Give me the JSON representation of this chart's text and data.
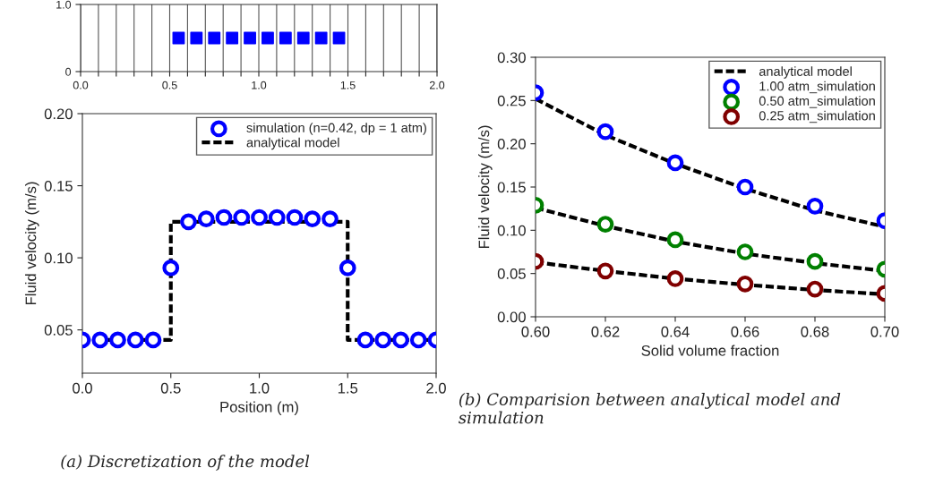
{
  "chart_data": [
    {
      "type": "scatter",
      "x": [
        0.55,
        0.65,
        0.75,
        0.85,
        0.95,
        1.05,
        1.15,
        1.25,
        1.35,
        1.45
      ],
      "values": [
        0.5,
        0.5,
        0.5,
        0.5,
        0.5,
        0.5,
        0.5,
        0.5,
        0.5,
        0.5
      ],
      "color": "#0000ff",
      "marker": "square",
      "xlim": [
        0,
        2
      ],
      "ylim": [
        0,
        1
      ],
      "xticks": [
        {
          "value": 0,
          "label": "0.0"
        },
        {
          "value": 0.1,
          "label": null
        },
        {
          "value": 0.2,
          "label": null
        },
        {
          "value": 0.3,
          "label": null
        },
        {
          "value": 0.4,
          "label": null
        },
        {
          "value": 0.5,
          "label": "0.5"
        },
        {
          "value": 0.6,
          "label": null
        },
        {
          "value": 0.7,
          "label": null
        },
        {
          "value": 0.8,
          "label": null
        },
        {
          "value": 0.9,
          "label": null
        },
        {
          "value": 1,
          "label": "1.0"
        },
        {
          "value": 1.1,
          "label": null
        },
        {
          "value": 1.2,
          "label": null
        },
        {
          "value": 1.3,
          "label": null
        },
        {
          "value": 1.4,
          "label": null
        },
        {
          "value": 1.5,
          "label": "1.5"
        },
        {
          "value": 1.6,
          "label": null
        },
        {
          "value": 1.7,
          "label": null
        },
        {
          "value": 1.8,
          "label": null
        },
        {
          "value": 1.9,
          "label": null
        },
        {
          "value": 2,
          "label": "2.0"
        }
      ],
      "yticks": [
        0,
        {
          "value": 1,
          "label": "1.0"
        }
      ],
      "grid": "x"
    },
    {
      "type": "line",
      "xlabel": "Position (m)",
      "ylabel": "Fluid velocity (m/s)",
      "xlim": [
        0,
        2
      ],
      "ylim": [
        0.02,
        0.2
      ],
      "xticks": [
        {
          "value": 0,
          "label": "0.0"
        },
        {
          "value": 0.5,
          "label": "0.5"
        },
        {
          "value": 1,
          "label": "1.0"
        },
        {
          "value": 1.5,
          "label": "1.5"
        },
        {
          "value": 2,
          "label": "2.0"
        }
      ],
      "yticks": [
        {
          "value": 0.05,
          "label": "0.05"
        },
        {
          "value": 0.1,
          "label": "0.10"
        },
        {
          "value": 0.15,
          "label": "0.15"
        },
        {
          "value": 0.2,
          "label": "0.20"
        }
      ],
      "legend": "top right",
      "annotations": [
        "(a) Discretization of the model"
      ],
      "series": [
        {
          "name": "simulation (n=0.42, dp = 1 atm)",
          "type": "scatter",
          "marker": "circle",
          "color": "#0000ff",
          "x": [
            0,
            0.1,
            0.2,
            0.3,
            0.4,
            0.5,
            0.6,
            0.7,
            0.8,
            0.9,
            1.0,
            1.1,
            1.2,
            1.3,
            1.4,
            1.5,
            1.6,
            1.7,
            1.8,
            1.9,
            2.0
          ],
          "values": [
            0.043,
            0.043,
            0.043,
            0.043,
            0.043,
            0.093,
            0.125,
            0.127,
            0.128,
            0.128,
            0.128,
            0.128,
            0.128,
            0.127,
            0.127,
            0.093,
            0.043,
            0.043,
            0.043,
            0.043,
            0.043
          ]
        },
        {
          "name": "analytical model",
          "type": "line",
          "line_style": "dashed",
          "color": "#000000",
          "x": [
            0,
            0.5,
            0.5,
            1.5,
            1.5,
            2.0
          ],
          "values": [
            0.043,
            0.043,
            0.125,
            0.125,
            0.043,
            0.043
          ]
        }
      ]
    },
    {
      "type": "line",
      "xlabel": "Solid volume fraction",
      "ylabel": "Fluid velocity (m/s)",
      "xlim": [
        0.6,
        0.7
      ],
      "ylim": [
        0,
        0.3
      ],
      "xticks": [
        {
          "value": 0.6,
          "label": "0.60"
        },
        {
          "value": 0.62,
          "label": "0.62"
        },
        {
          "value": 0.64,
          "label": "0.64"
        },
        {
          "value": 0.66,
          "label": "0.66"
        },
        {
          "value": 0.68,
          "label": "0.68"
        },
        {
          "value": 0.7,
          "label": "0.70"
        }
      ],
      "yticks": [
        {
          "value": 0,
          "label": "0.00"
        },
        {
          "value": 0.05,
          "label": "0.05"
        },
        {
          "value": 0.1,
          "label": "0.10"
        },
        {
          "value": 0.15,
          "label": "0.15"
        },
        {
          "value": 0.2,
          "label": "0.20"
        },
        {
          "value": 0.25,
          "label": "0.25"
        },
        {
          "value": 0.3,
          "label": "0.30"
        }
      ],
      "legend": "top right",
      "annotations": [
        "(b) Comparision between analytical model and simulation"
      ],
      "x": [
        0.6,
        0.62,
        0.64,
        0.66,
        0.68,
        0.7
      ],
      "series": [
        {
          "name": "analytical model",
          "type": "line",
          "line_style": "dashed",
          "color": "#000000",
          "values": [
            0.252,
            0.21,
            0.177,
            0.148,
            0.123,
            0.104
          ]
        },
        {
          "name": "1.00 atm_simulation",
          "type": "scatter",
          "marker": "circle",
          "color": "#0000ff",
          "values": [
            0.259,
            0.214,
            0.178,
            0.15,
            0.128,
            0.111
          ]
        },
        {
          "name": "0.50 atm_simulation",
          "type": "scatter",
          "marker": "circle",
          "color": "#008000",
          "values": [
            0.129,
            0.107,
            0.089,
            0.075,
            0.064,
            0.055
          ]
        },
        {
          "name": "0.25 atm_simulation",
          "type": "scatter",
          "marker": "circle",
          "color": "#800000",
          "values": [
            0.064,
            0.053,
            0.044,
            0.038,
            0.032,
            0.027
          ]
        },
        {
          "type": "line",
          "line_style": "dashed",
          "color": "#000000",
          "values": [
            0.126,
            0.105,
            0.087,
            0.073,
            0.062,
            0.053
          ]
        },
        {
          "type": "line",
          "line_style": "dashed",
          "color": "#000000",
          "values": [
            0.063,
            0.053,
            0.044,
            0.037,
            0.031,
            0.026
          ]
        }
      ]
    }
  ]
}
